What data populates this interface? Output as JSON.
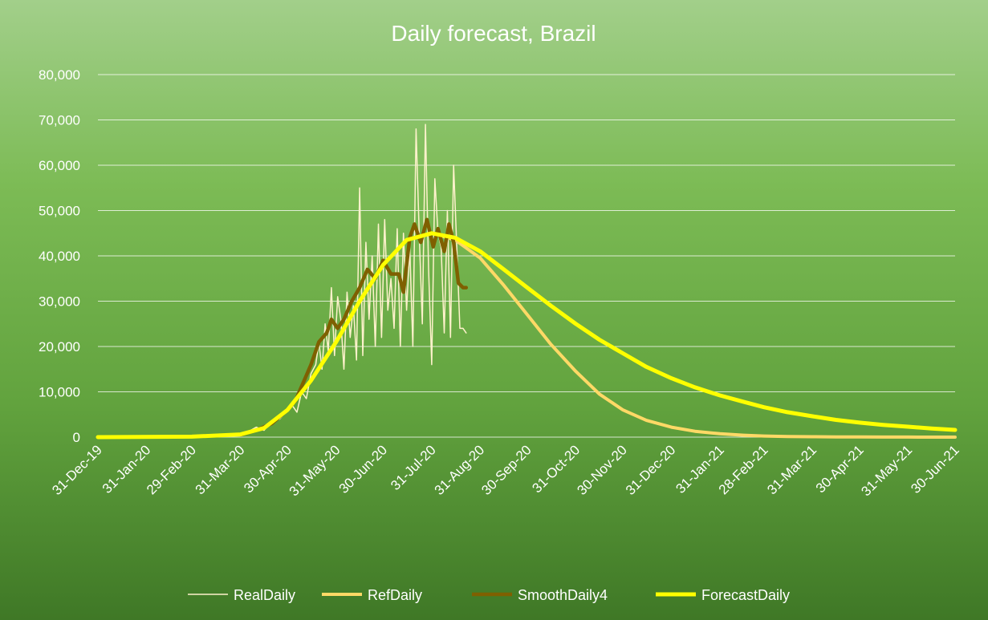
{
  "chart_data": {
    "type": "line",
    "title": "Daily forecast, Brazil",
    "xlabel": "",
    "ylabel": "",
    "ylim": [
      0,
      80000
    ],
    "xlim": [
      "2019-12-31",
      "2021-06-30"
    ],
    "yticks": [
      0,
      10000,
      20000,
      30000,
      40000,
      50000,
      60000,
      70000,
      80000
    ],
    "ytick_labels": [
      "0",
      "10,000",
      "20,000",
      "30,000",
      "40,000",
      "50,000",
      "60,000",
      "70,000",
      "80,000"
    ],
    "xtick_labels": [
      "31-Dec-19",
      "31-Jan-20",
      "29-Feb-20",
      "31-Mar-20",
      "30-Apr-20",
      "31-May-20",
      "30-Jun-20",
      "31-Jul-20",
      "31-Aug-20",
      "30-Sep-20",
      "31-Oct-20",
      "30-Nov-20",
      "31-Dec-20",
      "31-Jan-21",
      "28-Feb-21",
      "31-Mar-21",
      "30-Apr-21",
      "31-May-21",
      "30-Jun-21"
    ],
    "xtick_dates": [
      "2019-12-31",
      "2020-01-31",
      "2020-02-29",
      "2020-03-31",
      "2020-04-30",
      "2020-05-31",
      "2020-06-30",
      "2020-07-31",
      "2020-08-31",
      "2020-09-30",
      "2020-10-31",
      "2020-11-30",
      "2020-12-31",
      "2021-01-31",
      "2021-02-28",
      "2021-03-31",
      "2021-04-30",
      "2021-05-31",
      "2021-06-30"
    ],
    "grid": true,
    "legend_position": "bottom",
    "series": [
      {
        "name": "RealDaily",
        "color": "#fff2cc",
        "x": [
          "2020-03-31",
          "2020-04-05",
          "2020-04-10",
          "2020-04-15",
          "2020-04-20",
          "2020-04-25",
          "2020-04-30",
          "2020-05-03",
          "2020-05-06",
          "2020-05-09",
          "2020-05-12",
          "2020-05-15",
          "2020-05-18",
          "2020-05-20",
          "2020-05-22",
          "2020-05-24",
          "2020-05-26",
          "2020-05-28",
          "2020-05-30",
          "2020-06-01",
          "2020-06-03",
          "2020-06-05",
          "2020-06-07",
          "2020-06-09",
          "2020-06-11",
          "2020-06-13",
          "2020-06-15",
          "2020-06-17",
          "2020-06-19",
          "2020-06-21",
          "2020-06-23",
          "2020-06-25",
          "2020-06-27",
          "2020-06-29",
          "2020-07-01",
          "2020-07-03",
          "2020-07-05",
          "2020-07-07",
          "2020-07-09",
          "2020-07-11",
          "2020-07-13",
          "2020-07-15",
          "2020-07-17",
          "2020-07-19",
          "2020-07-21",
          "2020-07-23",
          "2020-07-25",
          "2020-07-27",
          "2020-07-29",
          "2020-07-31",
          "2020-08-02",
          "2020-08-04",
          "2020-08-06",
          "2020-08-08",
          "2020-08-10",
          "2020-08-12",
          "2020-08-14",
          "2020-08-16",
          "2020-08-18",
          "2020-08-20",
          "2020-08-22"
        ],
        "values": [
          500,
          1200,
          2200,
          1500,
          3500,
          4000,
          6000,
          7000,
          5500,
          10000,
          8500,
          14000,
          16000,
          21000,
          15000,
          25000,
          19000,
          33000,
          18000,
          31000,
          26000,
          15000,
          32000,
          22000,
          29000,
          17000,
          55000,
          18000,
          43000,
          26000,
          40000,
          20000,
          47000,
          22000,
          48000,
          28000,
          35000,
          24000,
          46000,
          20000,
          45000,
          28000,
          42000,
          20000,
          68000,
          45000,
          25000,
          69000,
          37000,
          16000,
          57000,
          45000,
          42000,
          23000,
          50000,
          22000,
          60000,
          42000,
          24000,
          24000,
          23000
        ]
      },
      {
        "name": "RefDaily",
        "color": "#ffd966",
        "x": [
          "2019-12-31",
          "2020-02-29",
          "2020-03-31",
          "2020-04-15",
          "2020-04-30",
          "2020-05-15",
          "2020-05-31",
          "2020-06-15",
          "2020-06-30",
          "2020-07-15",
          "2020-07-31",
          "2020-08-15",
          "2020-08-31",
          "2020-09-15",
          "2020-09-30",
          "2020-10-15",
          "2020-10-31",
          "2020-11-15",
          "2020-11-30",
          "2020-12-15",
          "2020-12-31",
          "2021-01-15",
          "2021-01-31",
          "2021-02-15",
          "2021-02-28",
          "2021-03-15",
          "2021-03-31",
          "2021-04-15",
          "2021-04-30",
          "2021-05-15",
          "2021-05-31",
          "2021-06-15",
          "2021-06-30"
        ],
        "values": [
          0,
          100,
          600,
          2000,
          6000,
          12500,
          21000,
          30000,
          38000,
          43500,
          45000,
          43500,
          39500,
          33500,
          27000,
          20500,
          14500,
          9500,
          6000,
          3700,
          2200,
          1300,
          750,
          430,
          250,
          150,
          90,
          55,
          35,
          20,
          12,
          8,
          5
        ]
      },
      {
        "name": "SmoothDaily4",
        "color": "#7f6000",
        "x": [
          "2020-03-31",
          "2020-04-10",
          "2020-04-20",
          "2020-04-30",
          "2020-05-05",
          "2020-05-10",
          "2020-05-15",
          "2020-05-20",
          "2020-05-25",
          "2020-05-28",
          "2020-06-01",
          "2020-06-05",
          "2020-06-10",
          "2020-06-15",
          "2020-06-20",
          "2020-06-25",
          "2020-06-30",
          "2020-07-05",
          "2020-07-10",
          "2020-07-13",
          "2020-07-17",
          "2020-07-20",
          "2020-07-24",
          "2020-07-28",
          "2020-08-01",
          "2020-08-04",
          "2020-08-08",
          "2020-08-11",
          "2020-08-14",
          "2020-08-17",
          "2020-08-20",
          "2020-08-22"
        ],
        "values": [
          500,
          1500,
          3000,
          6000,
          8000,
          12000,
          16000,
          21000,
          23000,
          26000,
          24000,
          26000,
          30000,
          33000,
          37000,
          35000,
          39000,
          36000,
          36000,
          32000,
          44000,
          47000,
          43000,
          48000,
          42000,
          46000,
          41000,
          47000,
          43000,
          34000,
          33000,
          33000
        ]
      },
      {
        "name": "ForecastDaily",
        "color": "#ffff00",
        "x": [
          "2019-12-31",
          "2020-02-29",
          "2020-03-31",
          "2020-04-15",
          "2020-04-30",
          "2020-05-15",
          "2020-05-31",
          "2020-06-15",
          "2020-06-30",
          "2020-07-15",
          "2020-07-31",
          "2020-08-15",
          "2020-08-31",
          "2020-09-15",
          "2020-09-30",
          "2020-10-15",
          "2020-10-31",
          "2020-11-15",
          "2020-11-30",
          "2020-12-15",
          "2020-12-31",
          "2021-01-15",
          "2021-01-31",
          "2021-02-15",
          "2021-02-28",
          "2021-03-15",
          "2021-03-31",
          "2021-04-15",
          "2021-04-30",
          "2021-05-15",
          "2021-05-31",
          "2021-06-15",
          "2021-06-30"
        ],
        "values": [
          0,
          100,
          600,
          2000,
          6000,
          12500,
          21000,
          30000,
          38000,
          43500,
          45000,
          44000,
          41000,
          37000,
          33000,
          29000,
          25000,
          21500,
          18500,
          15500,
          13000,
          11000,
          9200,
          7800,
          6600,
          5500,
          4600,
          3800,
          3200,
          2700,
          2300,
          1900,
          1600
        ]
      }
    ]
  }
}
